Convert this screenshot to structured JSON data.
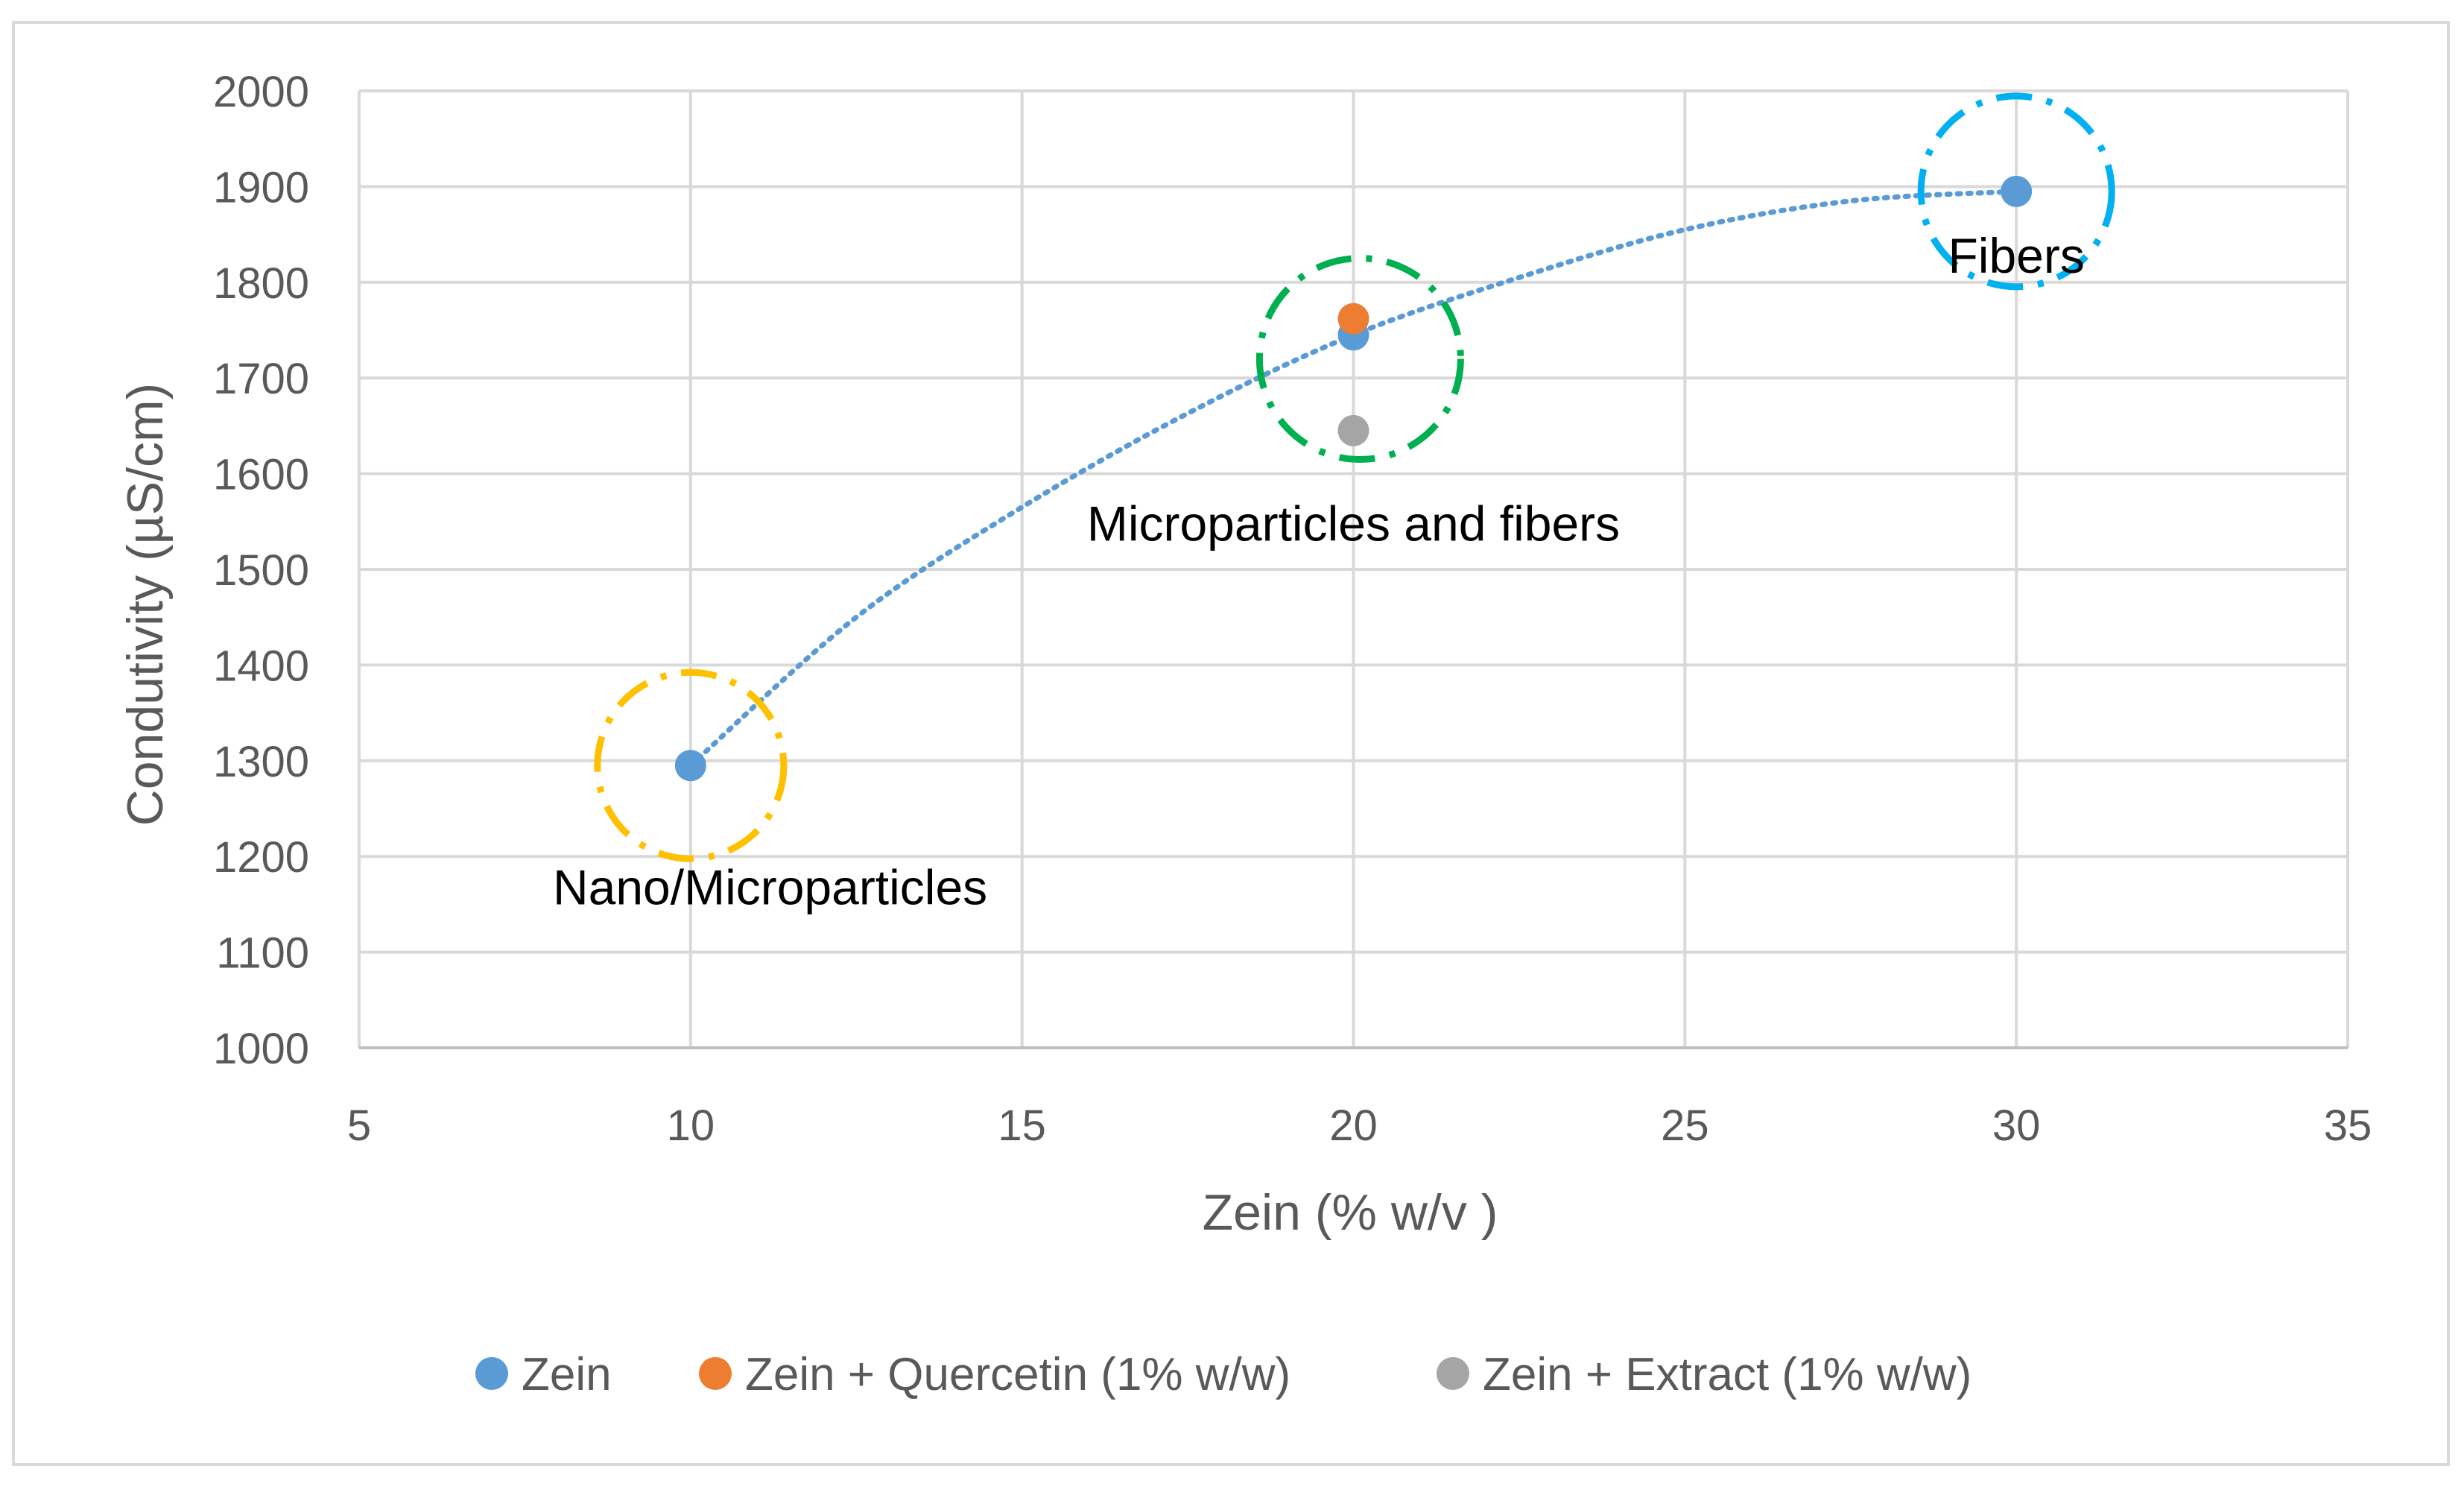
{
  "chart_data": {
    "type": "scatter",
    "title": "",
    "xlabel": "Zein (% w/v )",
    "ylabel": "Condutivity (µS/cm)",
    "xlim": [
      5,
      35
    ],
    "ylim": [
      1000,
      2000
    ],
    "x_ticks": [
      5,
      10,
      15,
      20,
      25,
      30,
      35
    ],
    "y_ticks": [
      1000,
      1100,
      1200,
      1300,
      1400,
      1500,
      1600,
      1700,
      1800,
      1900,
      2000
    ],
    "grid": true,
    "legend_position": "bottom",
    "series": [
      {
        "name": "Zein",
        "color": "#5B9BD5",
        "points": [
          {
            "x": 10,
            "y": 1295
          },
          {
            "x": 20,
            "y": 1745
          },
          {
            "x": 30,
            "y": 1895
          }
        ]
      },
      {
        "name": "Zein + Quercetin (1% w/w)",
        "color": "#ED7D31",
        "points": [
          {
            "x": 20,
            "y": 1762
          }
        ]
      },
      {
        "name": "Zein + Extract (1% w/w)",
        "color": "#A5A5A5",
        "points": [
          {
            "x": 20,
            "y": 1645
          }
        ]
      }
    ],
    "trendline": {
      "series": "Zein",
      "style": "dotted",
      "color": "#5B9BD5",
      "points": [
        {
          "x": 10,
          "y": 1295
        },
        {
          "x": 12.5,
          "y": 1450
        },
        {
          "x": 15,
          "y": 1565
        },
        {
          "x": 17.5,
          "y": 1663
        },
        {
          "x": 20,
          "y": 1745
        },
        {
          "x": 22.5,
          "y": 1805
        },
        {
          "x": 25,
          "y": 1855
        },
        {
          "x": 27.5,
          "y": 1885
        },
        {
          "x": 30,
          "y": 1895
        }
      ]
    },
    "annotations": [
      {
        "text": "Nano/Microparticles",
        "x": 11.2,
        "y": 1150,
        "circle_x": 10,
        "circle_y": 1295,
        "circle_color": "#FFC000"
      },
      {
        "text": "Microparticles and fibers",
        "x": 20,
        "y": 1530,
        "circle_x": 20.1,
        "circle_y": 1720,
        "circle_color": "#00B050"
      },
      {
        "text": "Fibers",
        "x": 30,
        "y": 1810,
        "circle_x": 30,
        "circle_y": 1895,
        "circle_color": "#00B0F0"
      }
    ]
  }
}
